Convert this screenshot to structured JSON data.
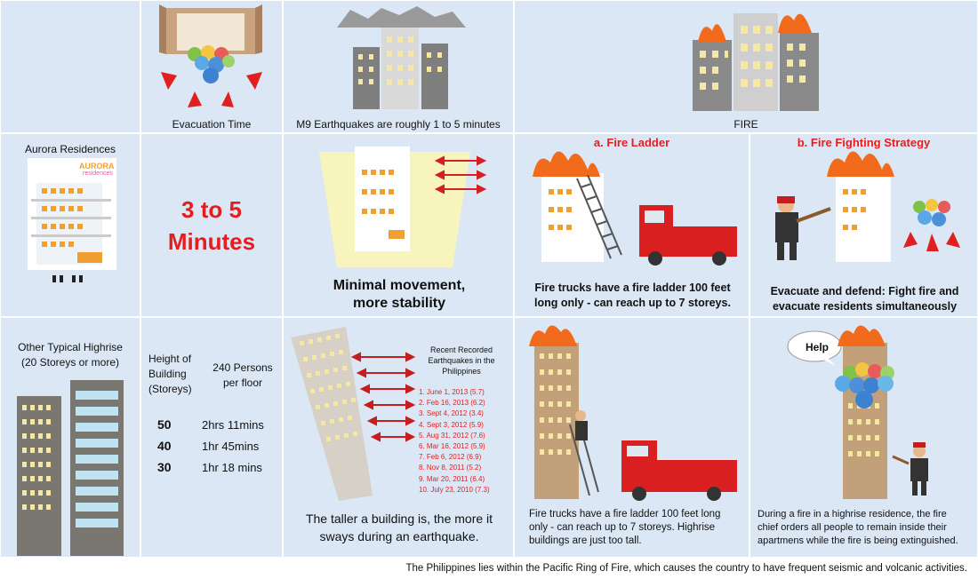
{
  "headers": {
    "evacuation_time": "Evacuation Time",
    "earthquakes": "M9 Earthquakes are roughly 1 to 5 minutes",
    "fire": "FIRE"
  },
  "aurora": {
    "label": "Aurora Residences",
    "logo_line1": "AURORA",
    "logo_line2": "residences",
    "time_line1": "3 to 5",
    "time_line2": "Minutes",
    "stability_line1": "Minimal movement,",
    "stability_line2": "more stability"
  },
  "fire_ladder": {
    "title": "a. Fire Ladder",
    "caption_line1": "Fire trucks have a fire ladder 100 feet",
    "caption_line2": "long only - can reach up to 7 storeys."
  },
  "fire_strategy": {
    "title": "b. Fire Fighting Strategy",
    "caption_line1": "Evacuate and defend: Fight fire and",
    "caption_line2": "evacuate residents simultaneously"
  },
  "highrise": {
    "label_line1": "Other Typical Highrise",
    "label_line2": "(20 Storeys or more)",
    "height_header": [
      "Height of",
      "Building",
      "(Storeys)"
    ],
    "persons_header": [
      "240 Persons",
      "per floor"
    ],
    "rows": [
      {
        "storeys": "50",
        "time": "2hrs 11mins"
      },
      {
        "storeys": "40",
        "time": "1hr 45mins"
      },
      {
        "storeys": "30",
        "time": "1hr 18 mins"
      }
    ],
    "sway_line1": "The taller a building is, the more it",
    "sway_line2": "sways during an earthquake.",
    "recent_title": [
      "Recent Recorded",
      "Earthquakes in the",
      "Philippines"
    ],
    "earthquakes": [
      "1. June 1, 2013 (5.7)",
      "2. Feb 16, 2013 (6.2)",
      "3. Sept 4, 2012 (3.4)",
      "4. Sept 3, 2012 (5.9)",
      "5. Aug 31, 2012 (7.6)",
      "6. Mar 16, 2012 (5.9)",
      "7. Feb 6, 2012 (6.9)",
      "8. Nov 8, 2011 (5.2)",
      "9. Mar 20, 2011 (6.4)",
      "10. July 23, 2010 (7.3)"
    ],
    "ladder_caption": [
      "Fire trucks have a fire ladder 100 feet long",
      "only - can reach up to 7 storeys.  Highrise",
      "buildings are just too tall."
    ],
    "help_label": "Help",
    "chief_caption": [
      "During a fire in a highrise residence, the fire",
      "chief orders all people to remain inside their",
      "apartmens while the fire is being extinguished."
    ]
  },
  "footer": "The Philippines lies within the Pacific Ring of Fire, which causes the country to have frequent seismic and volcanic activities.",
  "colors": {
    "cell_bg": "#dbe7f5",
    "accent_red": "#e41e1e",
    "window_yellow": "#f6e8a0",
    "building_grey": "#8a8a8a"
  }
}
